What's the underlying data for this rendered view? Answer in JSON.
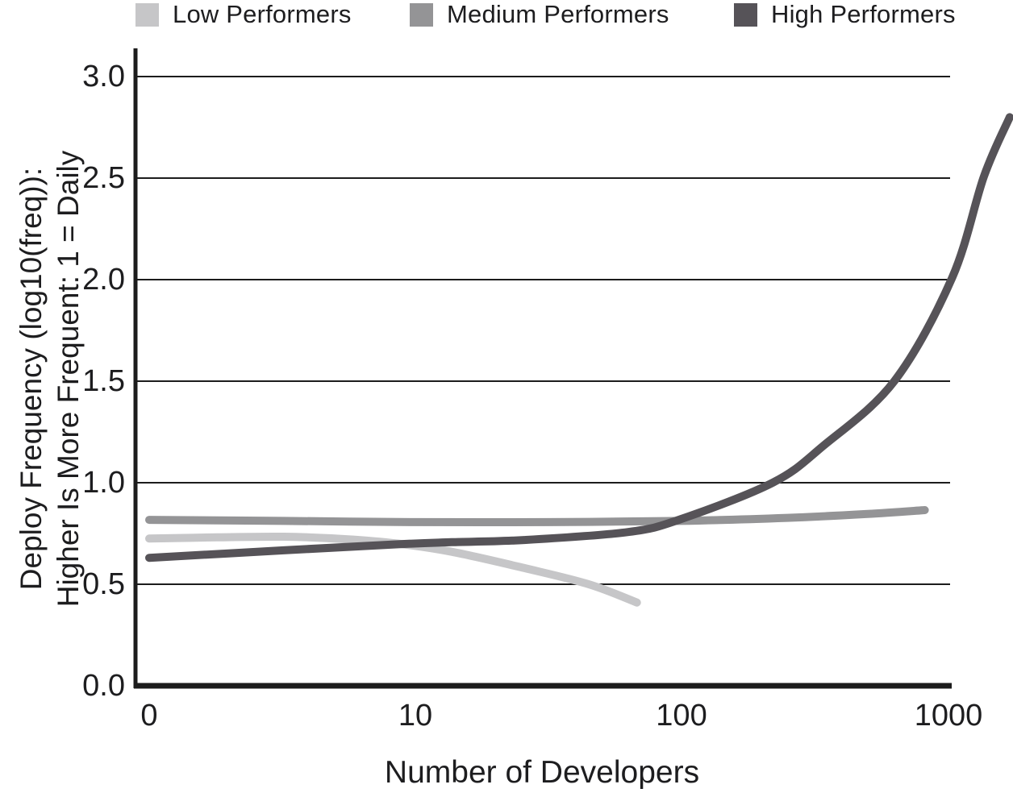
{
  "colors": {
    "background": "#ffffff",
    "axis": "#1c1c1c",
    "text": "#1d1d1f",
    "low": "#c6c6c8",
    "medium": "#949496",
    "high": "#565358"
  },
  "legend": {
    "items": [
      {
        "label": "Low Performers",
        "color": "#c6c6c8"
      },
      {
        "label": "Medium Performers",
        "color": "#949496"
      },
      {
        "label": "High Performers",
        "color": "#565358"
      }
    ]
  },
  "chart_data": {
    "type": "line",
    "xlabel": "Number of Developers",
    "ylabel": "Deploy Frequency (log10(freq)): Higher Is More Frequent: 1 = Daily",
    "ylabel_lines": [
      "Deploy Frequency (log10(freq)):",
      "Higher Is More Frequent: 1 = Daily"
    ],
    "x_scale": "log10",
    "x_tick_labels": [
      "0",
      "10",
      "100",
      "1000"
    ],
    "x_tick_values": [
      1,
      10,
      100,
      1000
    ],
    "y_tick_labels": [
      "3.0",
      "2.5",
      "2.0",
      "1.5",
      "1.0",
      "0.5",
      "0.0"
    ],
    "y_ticks": [
      0.0,
      0.5,
      1.0,
      1.5,
      2.0,
      2.5,
      3.0
    ],
    "ylim": [
      0,
      3
    ],
    "grid": "horizontal",
    "legend_position": "top",
    "series": [
      {
        "name": "Low Performers",
        "color": "#c6c6c8",
        "points": [
          [
            1,
            0.725
          ],
          [
            1.8,
            0.731
          ],
          [
            3.2,
            0.734
          ],
          [
            5.5,
            0.722
          ],
          [
            8.6,
            0.7
          ],
          [
            13.7,
            0.66
          ],
          [
            25.6,
            0.58
          ],
          [
            44.8,
            0.5
          ],
          [
            68,
            0.41
          ]
        ]
      },
      {
        "name": "Medium Performers",
        "color": "#949496",
        "points": [
          [
            1,
            0.817
          ],
          [
            3.2,
            0.812
          ],
          [
            10,
            0.806
          ],
          [
            32,
            0.806
          ],
          [
            100,
            0.812
          ],
          [
            250,
            0.827
          ],
          [
            500,
            0.846
          ],
          [
            820,
            0.865
          ]
        ]
      },
      {
        "name": "High Performers",
        "color": "#565358",
        "points": [
          [
            1,
            0.63
          ],
          [
            3.2,
            0.667
          ],
          [
            8.6,
            0.697
          ],
          [
            13.7,
            0.707
          ],
          [
            25.6,
            0.718
          ],
          [
            63,
            0.757
          ],
          [
            100,
            0.822
          ],
          [
            220,
            1.0
          ],
          [
            340,
            1.18
          ],
          [
            630,
            1.5
          ],
          [
            1040,
            2.01
          ],
          [
            1370,
            2.51
          ],
          [
            1710,
            2.8
          ]
        ]
      }
    ]
  }
}
